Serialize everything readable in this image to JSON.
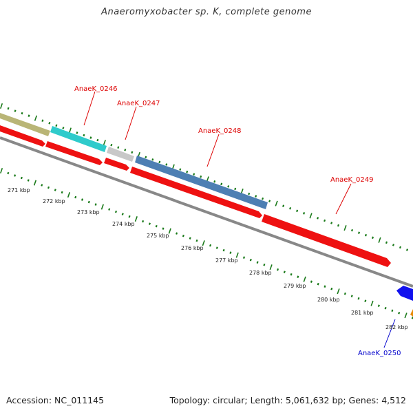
{
  "title": "Anaeromyxobacter sp. K, complete genome",
  "footer": {
    "accession": "Accession: NC_011145",
    "topology": "Topology: circular; Length: 5,061,632 bp; Genes: 4,512"
  },
  "colors": {
    "backbone": "#888888",
    "ticks": "#1a7a1a",
    "cds": "#ff0000",
    "label_red": "#dd0000",
    "label_blue": "#0000cc"
  },
  "kbp_labels": [
    "271 kbp",
    "272 kbp",
    "273 kbp",
    "274 kbp",
    "275 kbp",
    "276 kbp",
    "277 kbp",
    "278 kbp",
    "279 kbp",
    "280 kbp",
    "281 kbp",
    "282 kbp"
  ],
  "gene_labels": [
    {
      "text": "AnaeK_0246",
      "color": "#dd0000"
    },
    {
      "text": "AnaeK_0247",
      "color": "#dd0000"
    },
    {
      "text": "AnaeK_0248",
      "color": "#dd0000"
    },
    {
      "text": "AnaeK_0249",
      "color": "#dd0000"
    },
    {
      "text": "AnaeK_0250",
      "color": "#0000cc"
    }
  ]
}
